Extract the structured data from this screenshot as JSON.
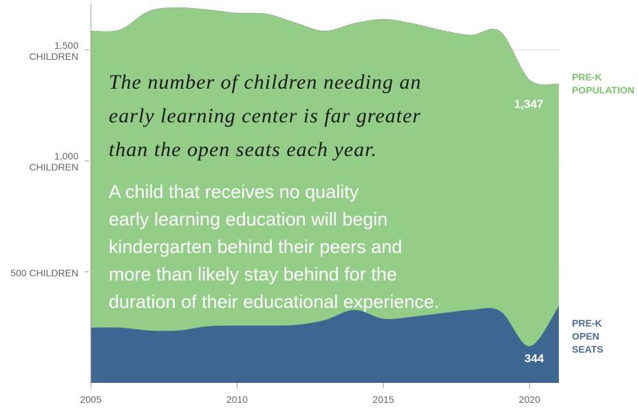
{
  "chart_data": {
    "type": "area",
    "x": [
      2005,
      2006,
      2007,
      2008,
      2009,
      2010,
      2011,
      2012,
      2013,
      2014,
      2015,
      2016,
      2017,
      2018,
      2019,
      2020,
      2021
    ],
    "series": [
      {
        "name": "PRE-K\nPOPULATION",
        "color": "#93cd87",
        "label_color": "#7dc26f",
        "values": [
          1585,
          1591,
          1675,
          1690,
          1681,
          1666,
          1662,
          1622,
          1585,
          1619,
          1638,
          1619,
          1588,
          1567,
          1582,
          1365,
          1347
        ],
        "value_labels": [
          null,
          null,
          null,
          null,
          null,
          null,
          null,
          null,
          null,
          null,
          null,
          null,
          null,
          null,
          null,
          null,
          "1,347"
        ]
      },
      {
        "name": "PRE-K\nOPEN\nSEATS",
        "color": "#3d6790",
        "label_color": "#4a6a9e",
        "values": [
          248,
          248,
          235,
          235,
          254,
          257,
          257,
          260,
          282,
          328,
          288,
          297,
          313,
          328,
          322,
          164,
          344
        ],
        "value_labels": [
          null,
          null,
          null,
          null,
          null,
          null,
          null,
          null,
          null,
          null,
          null,
          null,
          null,
          null,
          null,
          null,
          "344"
        ]
      }
    ],
    "xlim": [
      2005,
      2021
    ],
    "xticks": [
      2005,
      2010,
      2015,
      2020
    ],
    "ylim": [
      0,
      1700
    ],
    "yticks": [
      {
        "value": 500,
        "label": "500 CHILDREN"
      },
      {
        "value": 1000,
        "label": "1,000\nCHILDREN"
      },
      {
        "value": 1500,
        "label": "1,500\nCHILDREN"
      }
    ],
    "grid": true,
    "annotations": [
      "The number of children needing an\nearly learning center is far greater\nthan the open seats each year.",
      "A child that receives no quality\nearly learning education will begin\nkindergarten behind their peers and\nmore than likely stay behind for the\nduration of their educational experience."
    ]
  }
}
